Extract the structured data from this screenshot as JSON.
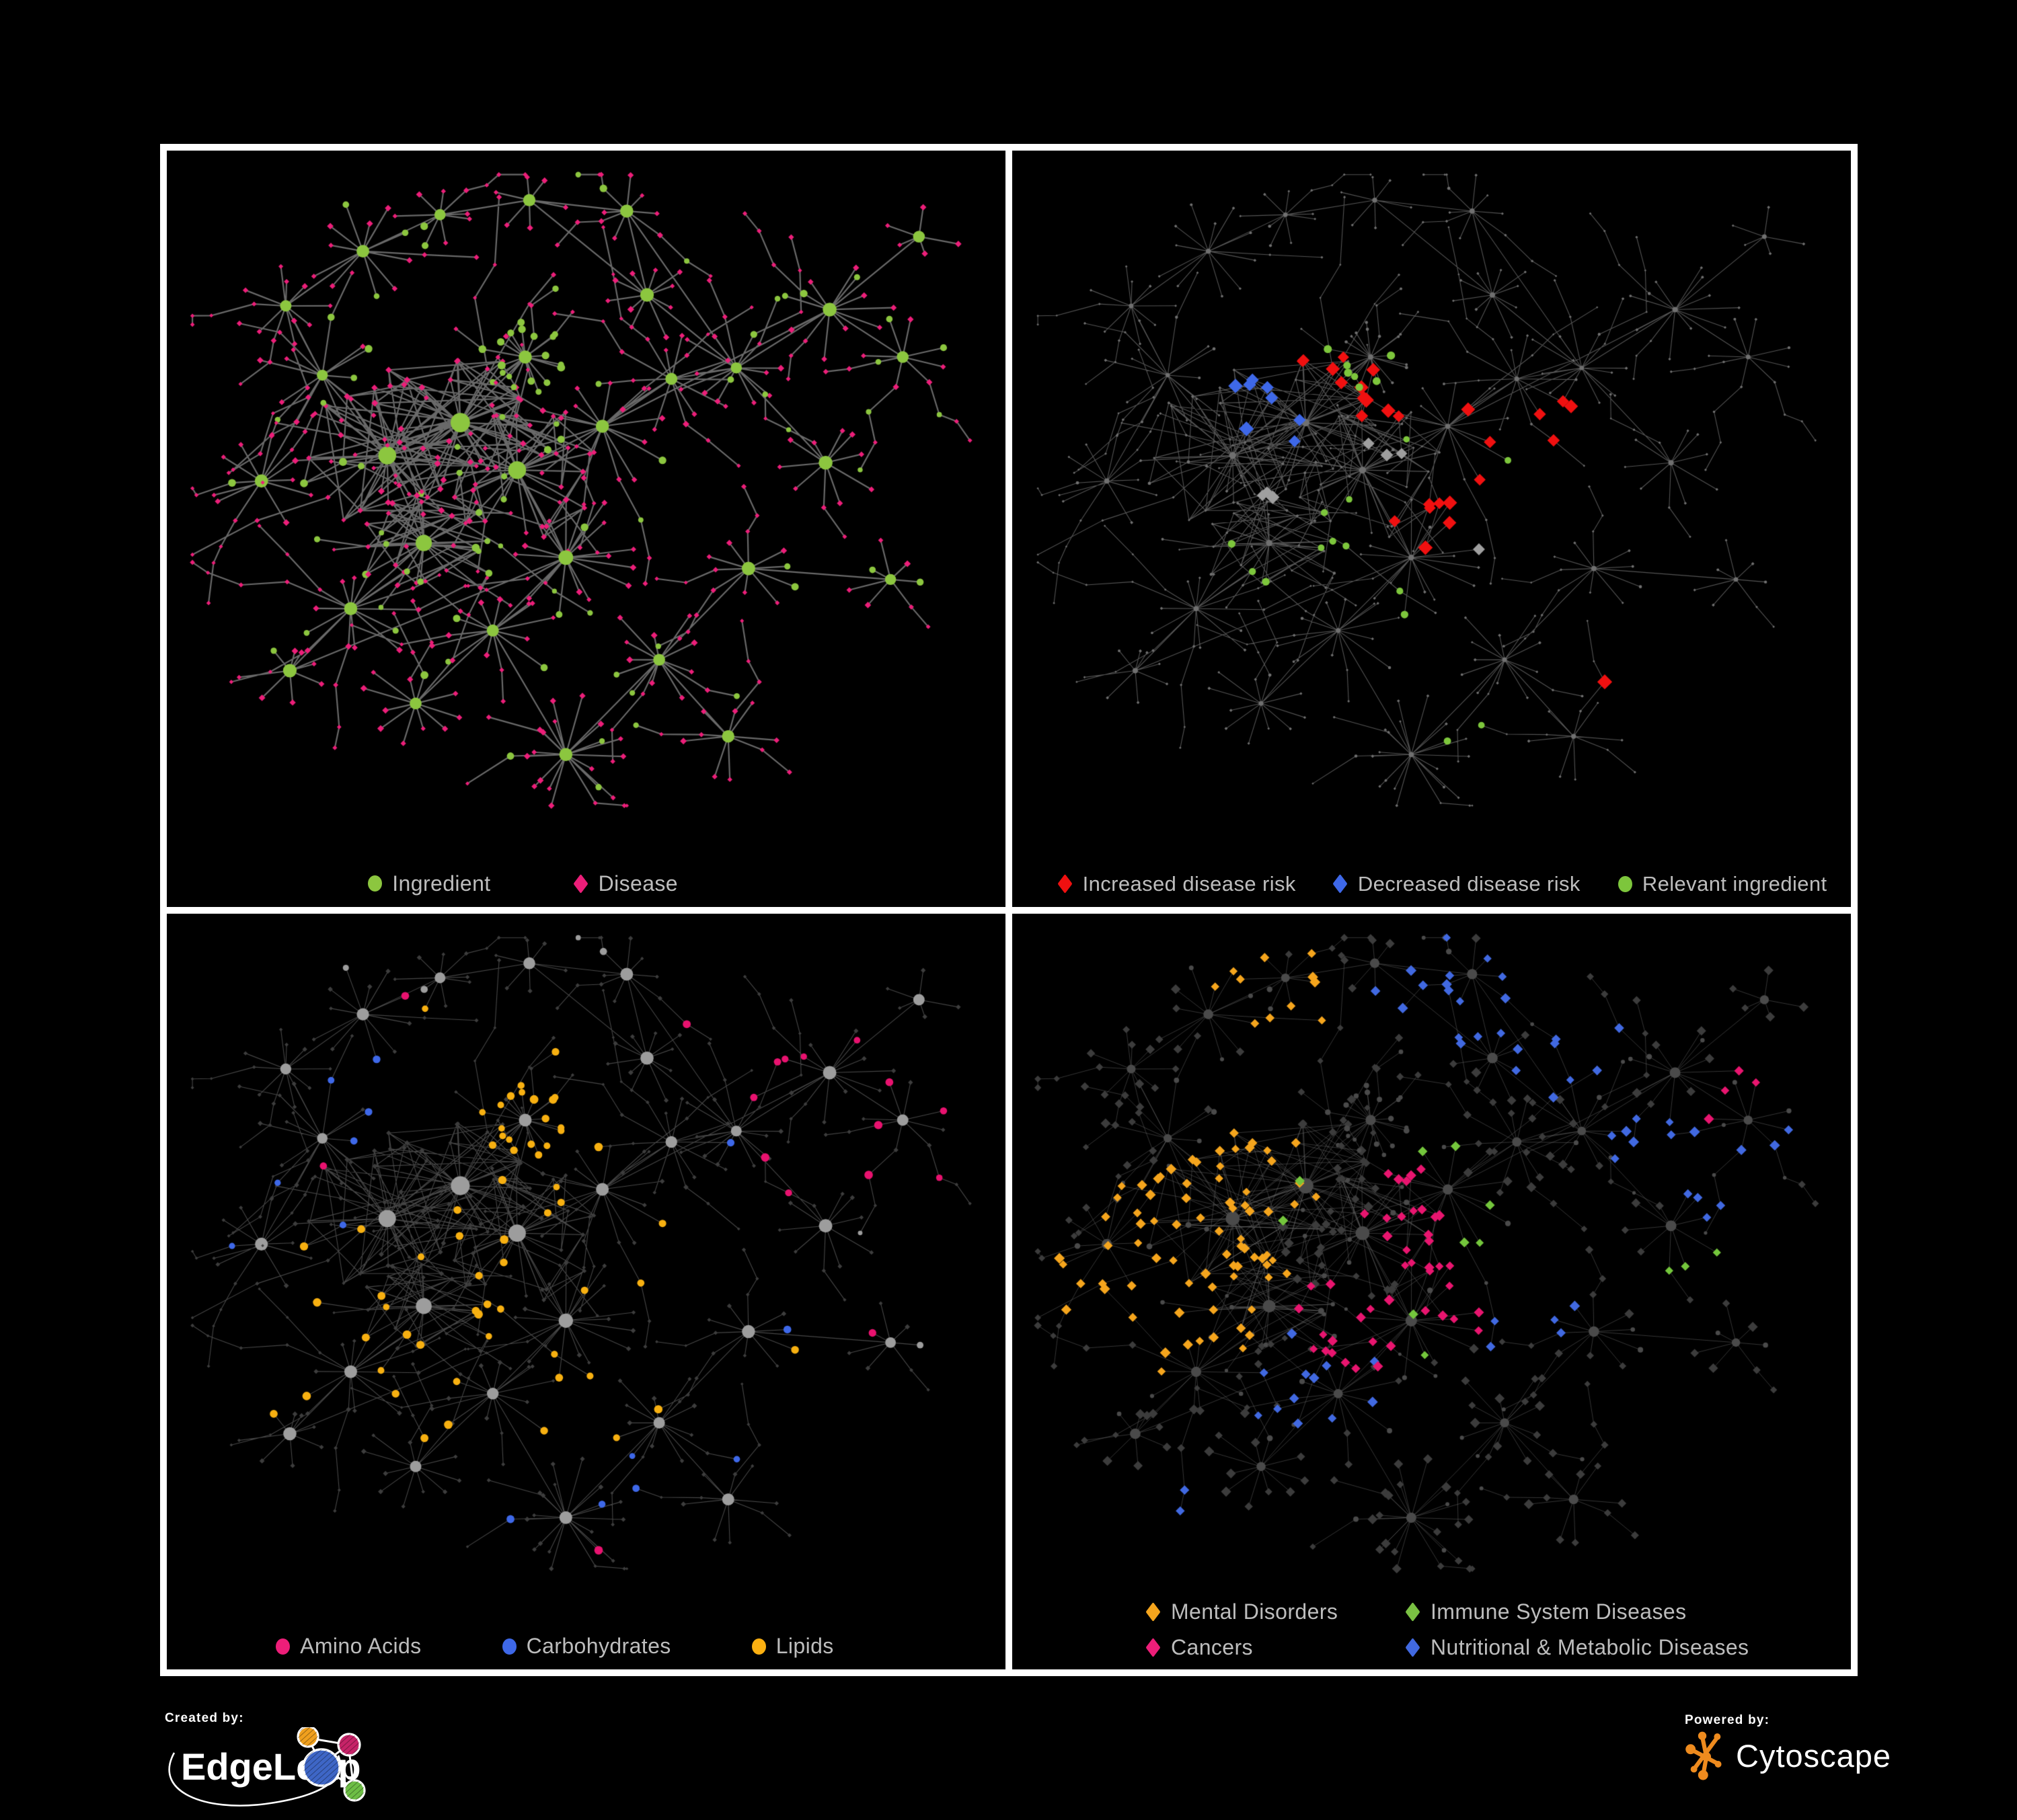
{
  "page": {
    "background": "#000000",
    "divider_color": "#ffffff",
    "panel_background": "#000000",
    "legend_text_color": "#bdbdbd"
  },
  "panels": [
    {
      "name": "ingredients-and-diseases",
      "legend": [
        {
          "shape": "circle",
          "color": "#8CC63F",
          "label": "Ingredient"
        },
        {
          "shape": "diamond",
          "color": "#EC1E79",
          "label": "Disease"
        }
      ]
    },
    {
      "name": "disease-risk",
      "legend": [
        {
          "shape": "diamond",
          "color": "#F01010",
          "label": "Increased disease risk"
        },
        {
          "shape": "diamond",
          "color": "#3E68E8",
          "label": "Decreased disease risk"
        },
        {
          "shape": "circle",
          "color": "#7DC63C",
          "label": "Relevant ingredient"
        }
      ]
    },
    {
      "name": "ingredient-classes",
      "legend": [
        {
          "shape": "circle",
          "color": "#ED1E79",
          "label": "Amino Acids"
        },
        {
          "shape": "circle",
          "color": "#3E68E8",
          "label": "Carbohydrates"
        },
        {
          "shape": "circle",
          "color": "#FBB011",
          "label": "Lipids"
        }
      ]
    },
    {
      "name": "disease-classes",
      "legend": [
        {
          "shape": "diamond",
          "color": "#F5A51D",
          "label": "Mental Disorders"
        },
        {
          "shape": "diamond",
          "color": "#7AC143",
          "label": "Immune System Diseases"
        },
        {
          "shape": "diamond",
          "color": "#ED1E79",
          "label": "Cancers"
        },
        {
          "shape": "diamond",
          "color": "#4169E1",
          "label": "Nutritional & Metabolic Diseases"
        }
      ]
    }
  ],
  "footer": {
    "created_by": "Created by:",
    "brand_left": "EdgeLeap",
    "powered_by": "Powered by:",
    "brand_right": "Cytoscape",
    "edgeleap_icon": "edgeleap-network-icon",
    "cytoscape_icon": "cytoscape-network-icon",
    "edgeleap_colors": {
      "blue": "#3E66C6",
      "orange": "#F0A01E",
      "magenta": "#C62368",
      "green": "#6DBE45"
    },
    "cytoscape_orange": "#EE8B1E"
  },
  "network": {
    "seed": 1337,
    "branch_prob": 0.2,
    "clusters": [
      [
        0.13,
        0.2,
        10,
        0.07,
        0,
        0,
        0
      ],
      [
        0.225,
        0.125,
        12,
        0.08,
        0,
        0,
        0
      ],
      [
        0.32,
        0.075,
        9,
        0.06,
        0,
        0,
        0
      ],
      [
        0.43,
        0.055,
        6,
        0.05,
        0,
        0,
        0
      ],
      [
        0.55,
        0.07,
        8,
        0.06,
        0,
        0,
        0
      ],
      [
        0.175,
        0.295,
        14,
        0.09,
        0,
        0,
        0
      ],
      [
        0.1,
        0.44,
        10,
        0.07,
        0,
        0,
        0
      ],
      [
        0.255,
        0.405,
        26,
        0.115,
        11,
        0.12,
        1
      ],
      [
        0.345,
        0.36,
        30,
        0.12,
        12,
        0.12,
        1
      ],
      [
        0.415,
        0.425,
        26,
        0.105,
        11,
        0.12,
        1
      ],
      [
        0.3,
        0.525,
        22,
        0.1,
        10,
        0.12,
        1
      ],
      [
        0.21,
        0.615,
        16,
        0.09,
        8,
        0,
        0
      ],
      [
        0.425,
        0.27,
        20,
        0.055,
        8,
        0.92,
        0
      ],
      [
        0.52,
        0.365,
        16,
        0.09,
        8,
        0,
        0
      ],
      [
        0.605,
        0.3,
        12,
        0.08,
        0,
        0,
        0
      ],
      [
        0.475,
        0.545,
        18,
        0.095,
        9,
        0,
        0
      ],
      [
        0.385,
        0.645,
        14,
        0.085,
        0,
        0,
        0
      ],
      [
        0.29,
        0.745,
        12,
        0.08,
        0,
        0,
        0
      ],
      [
        0.475,
        0.815,
        20,
        0.09,
        8,
        0,
        0
      ],
      [
        0.59,
        0.685,
        14,
        0.08,
        0,
        0,
        0
      ],
      [
        0.7,
        0.56,
        10,
        0.07,
        0,
        0,
        0
      ],
      [
        0.575,
        0.185,
        10,
        0.07,
        0,
        0,
        0
      ],
      [
        0.685,
        0.285,
        13,
        0.08,
        0,
        0,
        0
      ],
      [
        0.8,
        0.205,
        12,
        0.08,
        0,
        0,
        0
      ],
      [
        0.89,
        0.27,
        8,
        0.06,
        0,
        0,
        0
      ],
      [
        0.795,
        0.415,
        10,
        0.07,
        0,
        0,
        0
      ],
      [
        0.875,
        0.575,
        7,
        0.06,
        0,
        0,
        0
      ],
      [
        0.675,
        0.79,
        9,
        0.07,
        0,
        0,
        0
      ],
      [
        0.135,
        0.7,
        8,
        0.07,
        0,
        0,
        0
      ],
      [
        0.91,
        0.105,
        5,
        0.05,
        0,
        0,
        0
      ]
    ],
    "schemes": {
      "p1": {
        "seed": 11,
        "edge": {
          "color": "#6f6f6f",
          "alpha": 0.95,
          "width": 2.2
        },
        "circle": {
          "color": "#8CC63F",
          "mul": 1.15,
          "add": 0.6
        },
        "diamond": {
          "color": "#EC1E79",
          "mul": 1.0,
          "add": 0.4
        },
        "highlights": []
      },
      "p2": {
        "seed": 22,
        "edge": {
          "color": "#5d5d5d",
          "alpha": 0.9,
          "width": 1.1
        },
        "circle": {
          "color": "#707070",
          "mul": 0.42,
          "add": 0.5
        },
        "diamond": {
          "color": "#707070",
          "mul": 0.42,
          "add": 0.5
        },
        "highlights": [
          {
            "shape": "diamond",
            "color": "#F01010",
            "size": 10,
            "count": 27,
            "anchors": [
              [
                0.44,
                0.31
              ],
              [
                0.54,
                0.38
              ],
              [
                0.36,
                0.28
              ],
              [
                0.6,
                0.44
              ],
              [
                0.5,
                0.5
              ],
              [
                0.74,
                0.7
              ],
              [
                0.78,
                0.77
              ],
              [
                0.66,
                0.36
              ],
              [
                0.3,
                0.26
              ]
            ]
          },
          {
            "shape": "diamond",
            "color": "#3E68E8",
            "size": 10,
            "count": 8,
            "anchors": [
              [
                0.29,
                0.31
              ],
              [
                0.31,
                0.37
              ],
              [
                0.82,
                0.32
              ]
            ]
          },
          {
            "shape": "diamond",
            "color": "#9f9f9f",
            "size": 9,
            "count": 7,
            "anchors": [
              [
                0.44,
                0.4
              ],
              [
                0.3,
                0.44
              ],
              [
                0.56,
                0.52
              ],
              [
                0.36,
                0.33
              ]
            ]
          },
          {
            "shape": "circle",
            "color": "#7DC63C",
            "size": 5.5,
            "count": 21,
            "anchors": [
              [
                0.42,
                0.28
              ],
              [
                0.5,
                0.36
              ],
              [
                0.33,
                0.33
              ],
              [
                0.58,
                0.44
              ],
              [
                0.27,
                0.56
              ],
              [
                0.55,
                0.78
              ],
              [
                0.64,
                0.4
              ],
              [
                0.37,
                0.5
              ],
              [
                0.46,
                0.6
              ]
            ]
          }
        ]
      },
      "p3": {
        "seed": 33,
        "edge": {
          "color": "#8d8d8d",
          "alpha": 0.5,
          "width": 1.1
        },
        "circle": {
          "color": "#9d9d9d",
          "mul": 1.15,
          "add": 0.3
        },
        "diamond": {
          "color": "#3d3d3d",
          "mul": 0.85,
          "add": 0
        },
        "highlights": [
          {
            "shape": "circle",
            "color": "#F7B011",
            "size": 5.6,
            "count": 62,
            "anchors": [
              [
                0.4,
                0.26
              ],
              [
                0.44,
                0.29
              ],
              [
                0.38,
                0.31
              ],
              [
                0.35,
                0.42
              ],
              [
                0.3,
                0.48
              ],
              [
                0.48,
                0.53
              ],
              [
                0.55,
                0.6
              ],
              [
                0.27,
                0.63
              ],
              [
                0.52,
                0.36
              ],
              [
                0.6,
                0.55
              ],
              [
                0.24,
                0.72
              ]
            ]
          },
          {
            "shape": "circle",
            "color": "#3E68E8",
            "size": 5.2,
            "count": 14,
            "anchors": [
              [
                0.42,
                0.27
              ],
              [
                0.4,
                0.3
              ],
              [
                0.36,
                0.44
              ],
              [
                0.56,
                0.62
              ]
            ]
          },
          {
            "shape": "circle",
            "color": "#E8126F",
            "size": 5.6,
            "count": 17,
            "anchors": [
              [
                0.19,
                0.24
              ],
              [
                0.11,
                0.52
              ],
              [
                0.63,
                0.28
              ],
              [
                0.86,
                0.24
              ],
              [
                0.5,
                0.7
              ],
              [
                0.34,
                0.76
              ],
              [
                0.74,
                0.64
              ],
              [
                0.58,
                0.82
              ],
              [
                0.23,
                0.86
              ]
            ]
          }
        ]
      },
      "p4": {
        "seed": 44,
        "edge": {
          "color": "#6a6a6a",
          "alpha": 0.5,
          "width": 1.0
        },
        "circle": {
          "color": "#4a4a4a",
          "mul": 0.95,
          "add": 0
        },
        "diamond": {
          "color": "#3c3c3c",
          "mul": 1.45,
          "add": 0.8
        },
        "highlights": [
          {
            "shape": "diamond",
            "color": "#F5A51D",
            "size": 7,
            "count": 88,
            "anchors": [
              [
                0.18,
                0.4
              ],
              [
                0.24,
                0.46
              ],
              [
                0.13,
                0.47
              ],
              [
                0.27,
                0.35
              ],
              [
                0.3,
                0.1
              ],
              [
                0.21,
                0.56
              ]
            ]
          },
          {
            "shape": "diamond",
            "color": "#E8156F",
            "size": 7,
            "count": 48,
            "anchors": [
              [
                0.46,
                0.44
              ],
              [
                0.52,
                0.5
              ],
              [
                0.4,
                0.55
              ],
              [
                0.88,
                0.24
              ],
              [
                0.48,
                0.38
              ]
            ]
          },
          {
            "shape": "diamond",
            "color": "#4169E1",
            "size": 7,
            "count": 58,
            "anchors": [
              [
                0.63,
                0.52
              ],
              [
                0.76,
                0.3
              ],
              [
                0.68,
                0.18
              ],
              [
                0.26,
                0.1
              ],
              [
                0.48,
                0.08
              ],
              [
                0.86,
                0.38
              ],
              [
                0.36,
                0.64
              ],
              [
                0.16,
                0.82
              ],
              [
                0.56,
                0.12
              ],
              [
                0.92,
                0.3
              ]
            ]
          },
          {
            "shape": "diamond",
            "color": "#74C63C",
            "size": 7,
            "count": 12,
            "anchors": [
              [
                0.31,
                0.36
              ],
              [
                0.52,
                0.3
              ],
              [
                0.47,
                0.56
              ],
              [
                0.82,
                0.44
              ],
              [
                0.3,
                0.88
              ],
              [
                0.57,
                0.42
              ]
            ]
          }
        ]
      }
    }
  }
}
